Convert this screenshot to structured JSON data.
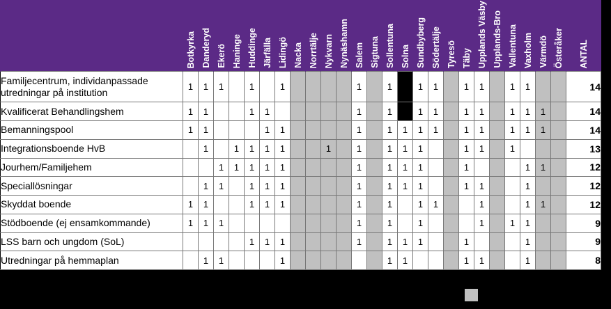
{
  "columns": [
    "Botkyrka",
    "Danderyd",
    "Ekerö",
    "Haninge",
    "Huddinge",
    "Järfälla",
    "Lidingö",
    "Nacka",
    "Norrtälje",
    "Nykvarn",
    "Nynäshamn",
    "Salem",
    "Sigtuna",
    "Sollentuna",
    "Solna",
    "Sundbyberg",
    "Södertälje",
    "Tyresö",
    "Täby",
    "Upplands Väsby",
    "Upplands-Bro",
    "Vallentuna",
    "Vaxholm",
    "Värmdö",
    "Österåker",
    "ANTAL"
  ],
  "rows": [
    {
      "label": "Familjecentrum, individanpassade utredningar på institution",
      "cells": [
        "1",
        "1",
        "1",
        "",
        "1",
        "",
        "1",
        "",
        "",
        "",
        "",
        "1",
        "",
        "1",
        "",
        "1",
        "1",
        "",
        "1",
        "1",
        "",
        "1",
        "1",
        "",
        "",
        "14"
      ],
      "fill": [
        "",
        "",
        "",
        "",
        "",
        "",
        "",
        "g",
        "g",
        "g",
        "g",
        "",
        "g",
        "",
        "k",
        "",
        "",
        "g",
        "",
        "",
        "g",
        "",
        "",
        "g",
        "g",
        ""
      ]
    },
    {
      "label": "Kvalificerat Behandlingshem",
      "cells": [
        "1",
        "1",
        "",
        "",
        "1",
        "1",
        "",
        "",
        "",
        "",
        "",
        "1",
        "",
        "1",
        "",
        "1",
        "1",
        "",
        "1",
        "1",
        "",
        "1",
        "1",
        "1",
        "",
        "14"
      ],
      "fill": [
        "",
        "",
        "",
        "",
        "",
        "",
        "",
        "g",
        "g",
        "g",
        "g",
        "",
        "g",
        "",
        "k",
        "",
        "",
        "g",
        "",
        "",
        "g",
        "",
        "",
        "g",
        "g",
        ""
      ]
    },
    {
      "label": "Bemanningspool",
      "cells": [
        "1",
        "1",
        "",
        "",
        "",
        "1",
        "1",
        "",
        "",
        "",
        "",
        "1",
        "",
        "1",
        "1",
        "1",
        "1",
        "",
        "1",
        "1",
        "",
        "1",
        "1",
        "1",
        "",
        "14"
      ],
      "fill": [
        "",
        "",
        "",
        "",
        "",
        "",
        "",
        "g",
        "g",
        "g",
        "g",
        "",
        "g",
        "",
        "",
        "",
        "",
        "g",
        "",
        "",
        "g",
        "",
        "",
        "g",
        "g",
        ""
      ]
    },
    {
      "label": "Integrationsboende HvB",
      "cells": [
        "",
        "1",
        "",
        "1",
        "1",
        "1",
        "1",
        "",
        "",
        "1",
        "",
        "1",
        "",
        "1",
        "1",
        "1",
        "",
        "",
        "1",
        "1",
        "",
        "1",
        "",
        "",
        "",
        "13"
      ],
      "fill": [
        "",
        "",
        "",
        "",
        "",
        "",
        "",
        "g",
        "g",
        "g",
        "g",
        "",
        "g",
        "",
        "",
        "",
        "",
        "g",
        "",
        "",
        "g",
        "",
        "",
        "g",
        "g",
        ""
      ]
    },
    {
      "label": "Jourhem/Familjehem",
      "cells": [
        "",
        "",
        "1",
        "1",
        "1",
        "1",
        "1",
        "",
        "",
        "",
        "",
        "1",
        "",
        "1",
        "1",
        "1",
        "",
        "",
        "1",
        "",
        "",
        "",
        "1",
        "1",
        "",
        "12"
      ],
      "fill": [
        "",
        "",
        "",
        "",
        "",
        "",
        "",
        "g",
        "g",
        "g",
        "g",
        "",
        "g",
        "",
        "",
        "",
        "",
        "g",
        "",
        "",
        "g",
        "",
        "",
        "g",
        "g",
        ""
      ]
    },
    {
      "label": "Speciallösningar",
      "cells": [
        "",
        "1",
        "1",
        "",
        "1",
        "1",
        "1",
        "",
        "",
        "",
        "",
        "1",
        "",
        "1",
        "1",
        "1",
        "",
        "",
        "1",
        "1",
        "",
        "",
        "1",
        "",
        "",
        "12"
      ],
      "fill": [
        "",
        "",
        "",
        "",
        "",
        "",
        "",
        "g",
        "g",
        "g",
        "g",
        "",
        "g",
        "",
        "",
        "",
        "",
        "g",
        "",
        "",
        "g",
        "",
        "",
        "g",
        "g",
        ""
      ]
    },
    {
      "label": "Skyddat boende",
      "cells": [
        "1",
        "1",
        "",
        "",
        "1",
        "1",
        "1",
        "",
        "",
        "",
        "",
        "1",
        "",
        "1",
        "",
        "1",
        "1",
        "",
        "",
        "1",
        "",
        "",
        "1",
        "1",
        "",
        "12"
      ],
      "fill": [
        "",
        "",
        "",
        "",
        "",
        "",
        "",
        "g",
        "g",
        "g",
        "g",
        "",
        "g",
        "",
        "",
        "",
        "",
        "g",
        "",
        "",
        "g",
        "",
        "",
        "g",
        "g",
        ""
      ]
    },
    {
      "label": "Stödboende (ej ensamkommande)",
      "cells": [
        "1",
        "1",
        "1",
        "",
        "",
        "",
        "",
        "",
        "",
        "",
        "",
        "1",
        "",
        "1",
        "",
        "1",
        "",
        "",
        "",
        "1",
        "",
        "1",
        "1",
        "",
        "",
        "9"
      ],
      "fill": [
        "",
        "",
        "",
        "",
        "",
        "",
        "",
        "g",
        "g",
        "g",
        "g",
        "",
        "g",
        "",
        "",
        "",
        "",
        "g",
        "",
        "",
        "g",
        "",
        "",
        "g",
        "g",
        ""
      ]
    },
    {
      "label": "LSS barn och ungdom (SoL)",
      "cells": [
        "",
        "",
        "",
        "",
        "1",
        "1",
        "1",
        "",
        "",
        "",
        "",
        "1",
        "",
        "1",
        "1",
        "1",
        "",
        "",
        "1",
        "",
        "",
        "",
        "1",
        "",
        "",
        "9"
      ],
      "fill": [
        "",
        "",
        "",
        "",
        "",
        "",
        "",
        "g",
        "g",
        "g",
        "g",
        "",
        "g",
        "",
        "",
        "",
        "",
        "g",
        "",
        "",
        "g",
        "",
        "",
        "g",
        "g",
        ""
      ]
    },
    {
      "label": "Utredningar på hemmaplan",
      "cells": [
        "",
        "1",
        "1",
        "",
        "",
        "",
        "1",
        "",
        "",
        "",
        "",
        "",
        "",
        "1",
        "1",
        "",
        "",
        "",
        "1",
        "1",
        "",
        "",
        "1",
        "",
        "",
        "8"
      ],
      "fill": [
        "",
        "",
        "",
        "",
        "",
        "",
        "",
        "g",
        "g",
        "g",
        "g",
        "",
        "g",
        "",
        "",
        "",
        "",
        "g",
        "",
        "",
        "g",
        "",
        "",
        "g",
        "g",
        ""
      ]
    }
  ],
  "colors": {
    "header": "#5b2a86",
    "excluded": "#c0c0c0",
    "blocked": "#000000"
  }
}
